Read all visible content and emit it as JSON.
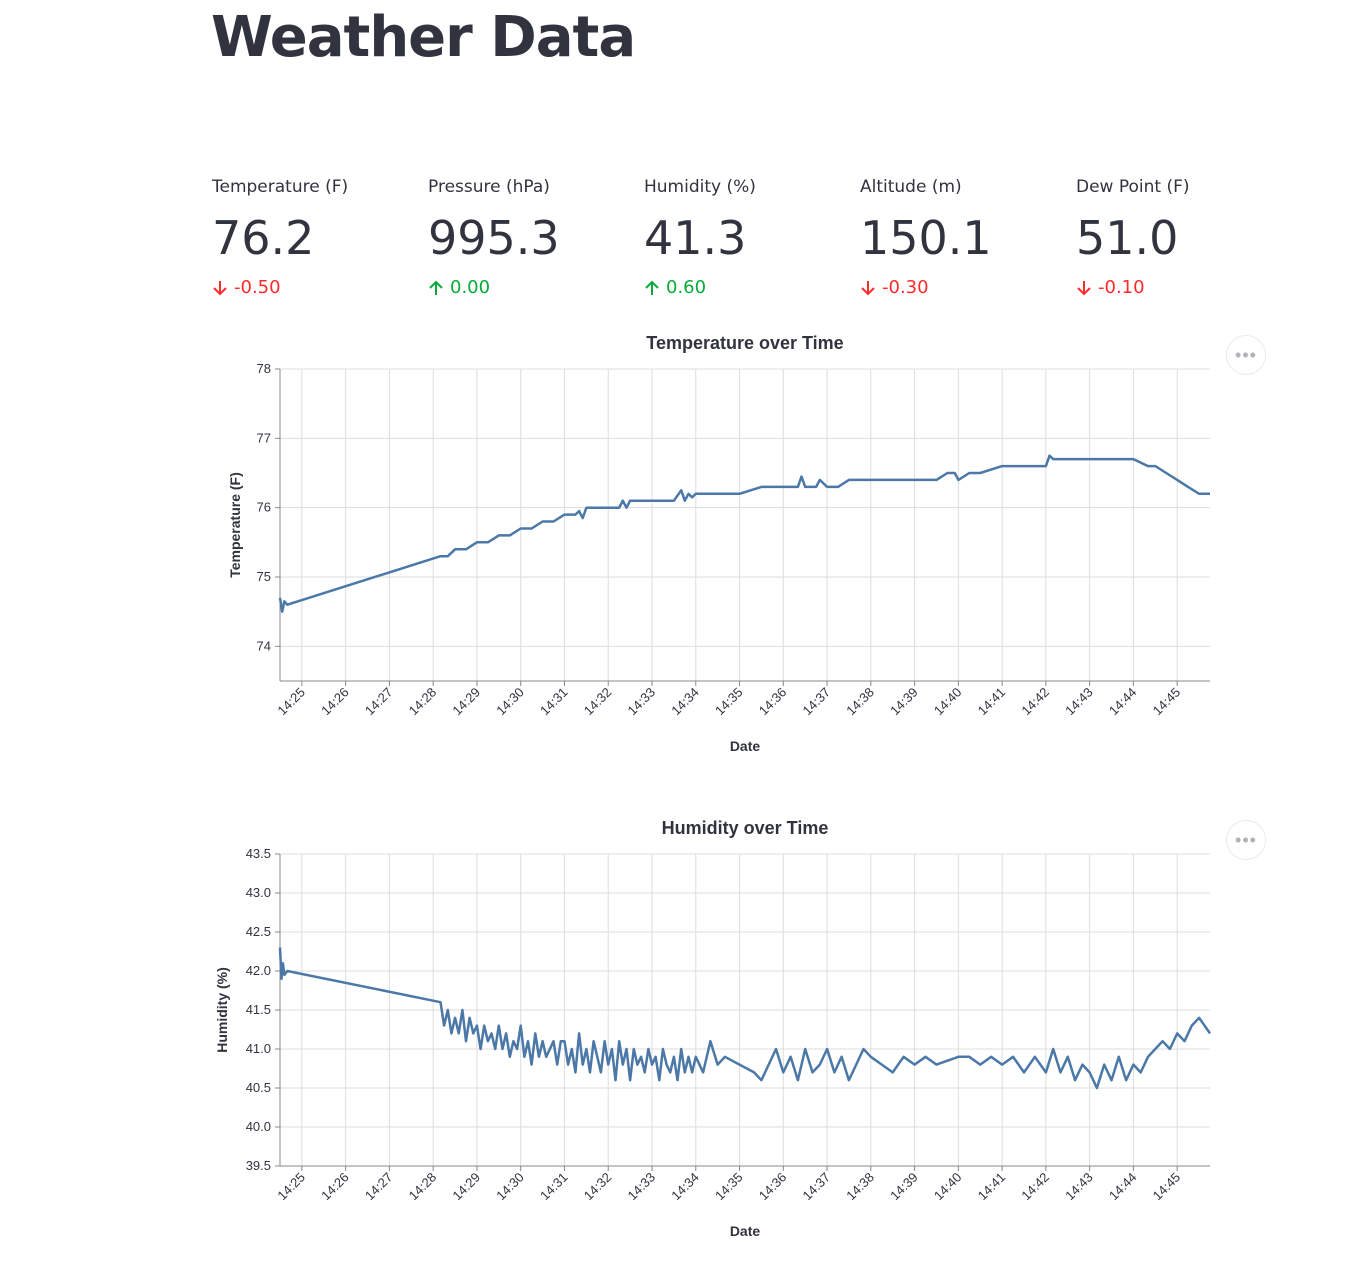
{
  "page": {
    "title": "Weather Data"
  },
  "metrics": [
    {
      "label": "Temperature (F)",
      "value": "76.2",
      "delta": "-0.50",
      "direction": "down"
    },
    {
      "label": "Pressure (hPa)",
      "value": "995.3",
      "delta": "0.00",
      "direction": "up"
    },
    {
      "label": "Humidity (%)",
      "value": "41.3",
      "delta": "0.60",
      "direction": "up"
    },
    {
      "label": "Altitude (m)",
      "value": "150.1",
      "delta": "-0.30",
      "direction": "down"
    },
    {
      "label": "Dew Point (F)",
      "value": "51.0",
      "delta": "-0.10",
      "direction": "down"
    }
  ],
  "colors": {
    "delta_down": "#ff2b2b",
    "delta_up": "#09ab3b",
    "series": "#4c78a8"
  },
  "chart_data": [
    {
      "type": "line",
      "title": "Temperature over Time",
      "xlabel": "Date",
      "ylabel": "Temperature (F)",
      "xlim": [
        "14:24:30",
        "14:45:45"
      ],
      "ylim": [
        73.5,
        78
      ],
      "yticks": [
        "74",
        "75",
        "76",
        "77",
        "78"
      ],
      "ytick_values": [
        74,
        75,
        76,
        77,
        78
      ],
      "xticks": [
        "14:25",
        "14:26",
        "14:27",
        "14:28",
        "14:29",
        "14:30",
        "14:31",
        "14:32",
        "14:33",
        "14:34",
        "14:35",
        "14:36",
        "14:37",
        "14:38",
        "14:39",
        "14:40",
        "14:41",
        "14:42",
        "14:43",
        "14:44",
        "14:45"
      ],
      "grid": true,
      "series": [
        {
          "x": [
            "14:24:30",
            "14:24:33",
            "14:24:36",
            "14:24:40",
            "14:28:10",
            "14:28:20",
            "14:28:30",
            "14:28:45",
            "14:29:00",
            "14:29:15",
            "14:29:30",
            "14:29:45",
            "14:30:00",
            "14:30:15",
            "14:30:30",
            "14:30:45",
            "14:31:00",
            "14:31:15",
            "14:31:20",
            "14:31:25",
            "14:31:30",
            "14:32:00",
            "14:32:15",
            "14:32:20",
            "14:32:25",
            "14:32:30",
            "14:33:00",
            "14:33:30",
            "14:33:40",
            "14:33:45",
            "14:33:50",
            "14:33:55",
            "14:34:00",
            "14:34:30",
            "14:35:00",
            "14:35:30",
            "14:36:00",
            "14:36:20",
            "14:36:25",
            "14:36:30",
            "14:36:45",
            "14:36:50",
            "14:37:00",
            "14:37:15",
            "14:37:30",
            "14:38:00",
            "14:38:30",
            "14:39:00",
            "14:39:30",
            "14:39:45",
            "14:39:55",
            "14:40:00",
            "14:40:15",
            "14:40:30",
            "14:41:00",
            "14:41:30",
            "14:42:00",
            "14:42:05",
            "14:42:10",
            "14:42:15",
            "14:43:00",
            "14:43:30",
            "14:44:00",
            "14:44:20",
            "14:44:30",
            "14:44:45",
            "14:45:00",
            "14:45:15",
            "14:45:30",
            "14:45:45"
          ],
          "y": [
            74.7,
            74.5,
            74.65,
            74.6,
            75.3,
            75.3,
            75.4,
            75.4,
            75.5,
            75.5,
            75.6,
            75.6,
            75.7,
            75.7,
            75.8,
            75.8,
            75.9,
            75.9,
            75.95,
            75.85,
            76.0,
            76.0,
            76.0,
            76.1,
            76.0,
            76.1,
            76.1,
            76.1,
            76.25,
            76.1,
            76.2,
            76.15,
            76.2,
            76.2,
            76.2,
            76.3,
            76.3,
            76.3,
            76.45,
            76.3,
            76.3,
            76.4,
            76.3,
            76.3,
            76.4,
            76.4,
            76.4,
            76.4,
            76.4,
            76.5,
            76.5,
            76.4,
            76.5,
            76.5,
            76.6,
            76.6,
            76.6,
            76.75,
            76.7,
            76.7,
            76.7,
            76.7,
            76.7,
            76.6,
            76.6,
            76.5,
            76.4,
            76.3,
            76.2,
            76.2
          ]
        }
      ]
    },
    {
      "type": "line",
      "title": "Humidity over Time",
      "xlabel": "Date",
      "ylabel": "Humidity (%)",
      "xlim": [
        "14:24:30",
        "14:45:45"
      ],
      "ylim": [
        39.5,
        43.5
      ],
      "yticks": [
        "39.5",
        "40.0",
        "40.5",
        "41.0",
        "41.5",
        "42.0",
        "42.5",
        "43.0",
        "43.5"
      ],
      "ytick_values": [
        39.5,
        40.0,
        40.5,
        41.0,
        41.5,
        42.0,
        42.5,
        43.0,
        43.5
      ],
      "xticks": [
        "14:25",
        "14:26",
        "14:27",
        "14:28",
        "14:29",
        "14:30",
        "14:31",
        "14:32",
        "14:33",
        "14:34",
        "14:35",
        "14:36",
        "14:37",
        "14:38",
        "14:39",
        "14:40",
        "14:41",
        "14:42",
        "14:43",
        "14:44",
        "14:45"
      ],
      "grid": true,
      "series": [
        {
          "x": [
            "14:24:30",
            "14:24:32",
            "14:24:34",
            "14:24:36",
            "14:24:40",
            "14:28:10",
            "14:28:15",
            "14:28:20",
            "14:28:25",
            "14:28:30",
            "14:28:35",
            "14:28:40",
            "14:28:45",
            "14:28:50",
            "14:28:55",
            "14:29:00",
            "14:29:05",
            "14:29:10",
            "14:29:15",
            "14:29:20",
            "14:29:25",
            "14:29:30",
            "14:29:35",
            "14:29:40",
            "14:29:45",
            "14:29:50",
            "14:29:55",
            "14:30:00",
            "14:30:05",
            "14:30:10",
            "14:30:15",
            "14:30:20",
            "14:30:25",
            "14:30:30",
            "14:30:35",
            "14:30:40",
            "14:30:45",
            "14:30:50",
            "14:30:55",
            "14:31:00",
            "14:31:05",
            "14:31:10",
            "14:31:15",
            "14:31:20",
            "14:31:25",
            "14:31:30",
            "14:31:35",
            "14:31:40",
            "14:31:45",
            "14:31:50",
            "14:31:55",
            "14:32:00",
            "14:32:05",
            "14:32:10",
            "14:32:15",
            "14:32:20",
            "14:32:25",
            "14:32:30",
            "14:32:35",
            "14:32:40",
            "14:32:45",
            "14:32:50",
            "14:32:55",
            "14:33:00",
            "14:33:05",
            "14:33:10",
            "14:33:15",
            "14:33:20",
            "14:33:25",
            "14:33:30",
            "14:33:35",
            "14:33:40",
            "14:33:45",
            "14:33:50",
            "14:33:55",
            "14:34:00",
            "14:34:10",
            "14:34:20",
            "14:34:30",
            "14:34:40",
            "14:35:00",
            "14:35:20",
            "14:35:30",
            "14:35:40",
            "14:35:50",
            "14:36:00",
            "14:36:10",
            "14:36:20",
            "14:36:30",
            "14:36:40",
            "14:36:50",
            "14:37:00",
            "14:37:10",
            "14:37:20",
            "14:37:30",
            "14:37:40",
            "14:37:50",
            "14:38:00",
            "14:38:15",
            "14:38:30",
            "14:38:45",
            "14:39:00",
            "14:39:15",
            "14:39:30",
            "14:40:00",
            "14:40:15",
            "14:40:30",
            "14:40:45",
            "14:41:00",
            "14:41:15",
            "14:41:30",
            "14:41:45",
            "14:42:00",
            "14:42:10",
            "14:42:20",
            "14:42:30",
            "14:42:40",
            "14:42:50",
            "14:43:00",
            "14:43:10",
            "14:43:20",
            "14:43:30",
            "14:43:40",
            "14:43:50",
            "14:44:00",
            "14:44:10",
            "14:44:20",
            "14:44:30",
            "14:44:40",
            "14:44:50",
            "14:45:00",
            "14:45:10",
            "14:45:20",
            "14:45:30",
            "14:45:45"
          ],
          "y": [
            42.3,
            41.9,
            42.1,
            41.95,
            42.0,
            41.6,
            41.3,
            41.5,
            41.2,
            41.4,
            41.2,
            41.5,
            41.1,
            41.4,
            41.2,
            41.3,
            41.0,
            41.3,
            41.1,
            41.2,
            41.0,
            41.3,
            41.0,
            41.2,
            40.9,
            41.1,
            41.0,
            41.3,
            40.9,
            41.1,
            40.8,
            41.2,
            40.9,
            41.1,
            40.9,
            41.0,
            41.1,
            40.8,
            41.1,
            41.1,
            40.8,
            41.0,
            40.7,
            41.2,
            40.8,
            41.0,
            40.7,
            41.1,
            40.9,
            40.7,
            41.1,
            40.8,
            41.0,
            40.6,
            41.1,
            40.8,
            41.0,
            40.6,
            41.0,
            40.8,
            40.9,
            40.7,
            41.0,
            40.8,
            40.9,
            40.6,
            41.0,
            40.8,
            40.7,
            40.9,
            40.6,
            41.0,
            40.7,
            40.9,
            40.7,
            40.9,
            40.7,
            41.1,
            40.8,
            40.9,
            40.8,
            40.7,
            40.6,
            40.8,
            41.0,
            40.7,
            40.9,
            40.6,
            41.0,
            40.7,
            40.8,
            41.0,
            40.7,
            40.9,
            40.6,
            40.8,
            41.0,
            40.9,
            40.8,
            40.7,
            40.9,
            40.8,
            40.9,
            40.8,
            40.9,
            40.9,
            40.8,
            40.9,
            40.8,
            40.9,
            40.7,
            40.9,
            40.7,
            41.0,
            40.7,
            40.9,
            40.6,
            40.8,
            40.7,
            40.5,
            40.8,
            40.6,
            40.9,
            40.6,
            40.8,
            40.7,
            40.9,
            41.0,
            41.1,
            41.0,
            41.2,
            41.1,
            41.3,
            41.4,
            41.2
          ]
        }
      ]
    }
  ]
}
